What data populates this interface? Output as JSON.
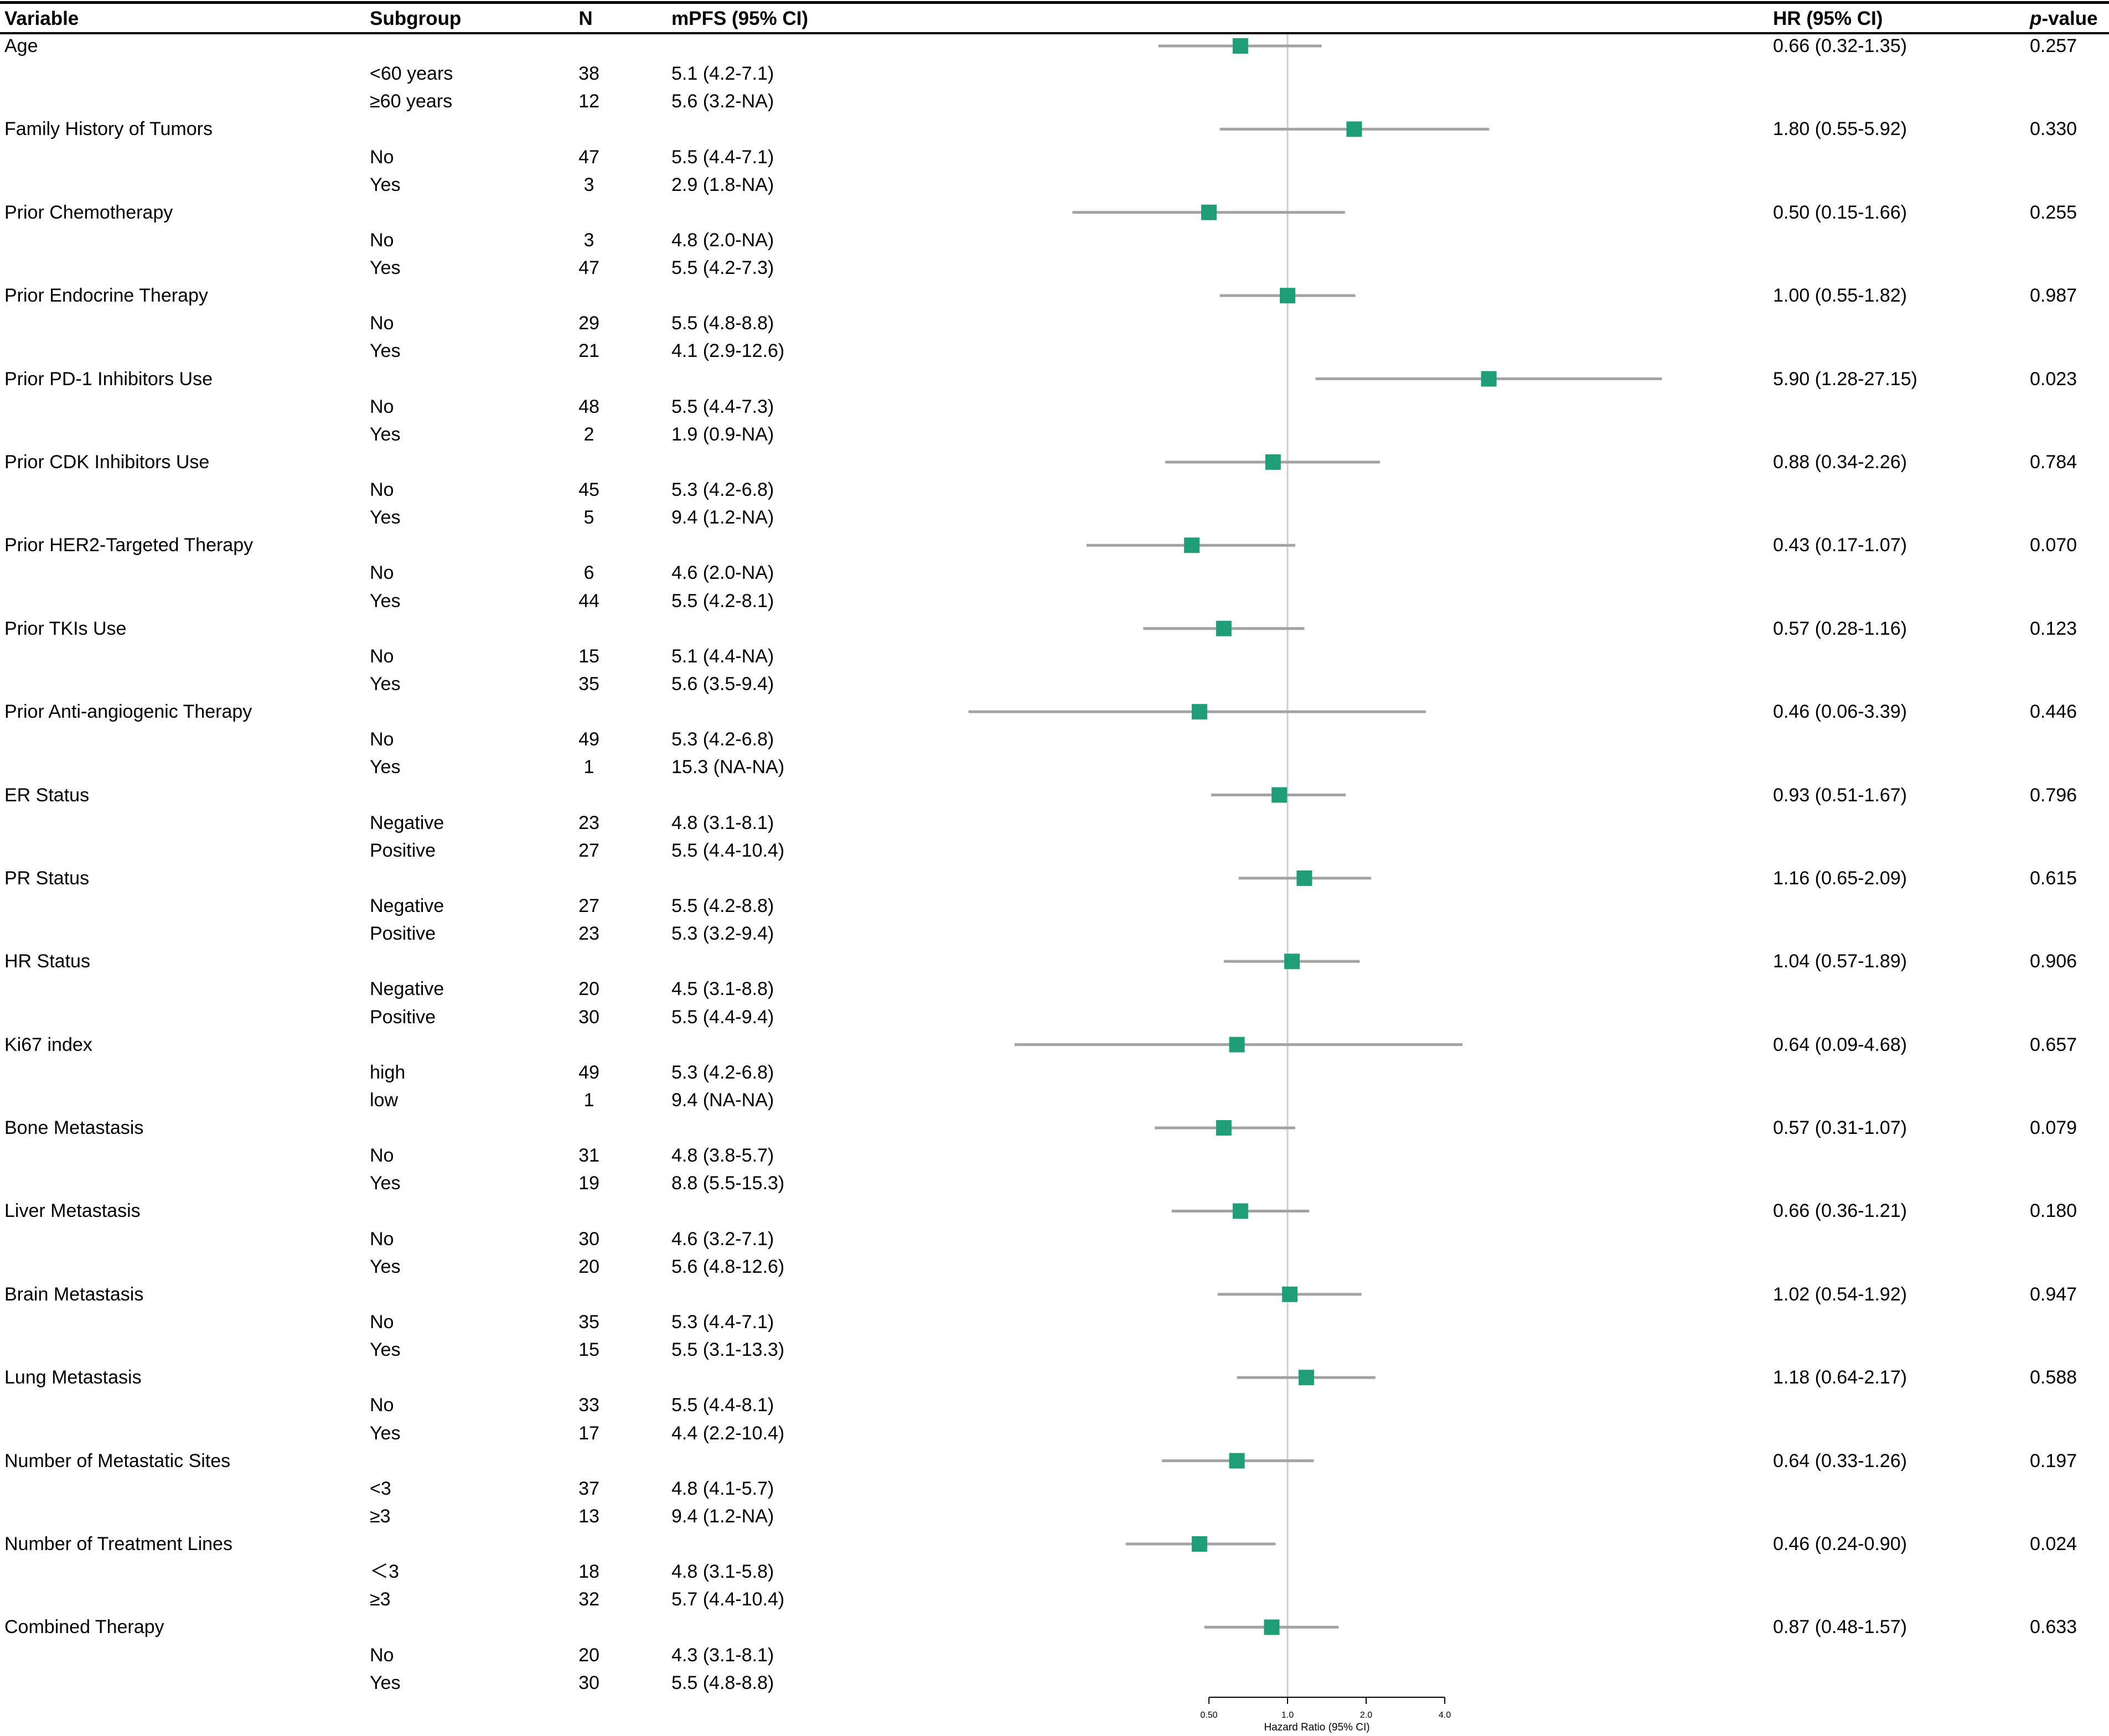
{
  "header": {
    "variable": "Variable",
    "subgroup": "Subgroup",
    "n": "N",
    "mpfs": "mPFS (95% CI)",
    "hr": "HR (95% CI)",
    "p_italic": "p",
    "p_rest": "-value"
  },
  "colors": {
    "marker": "#1f9e78",
    "ci_line": "#a3a3a3",
    "reference_line": "#cfcfcf",
    "axis": "#000000"
  },
  "chart_data": {
    "type": "forest",
    "title": "",
    "xlabel": "Hazard Ratio (95% CI)",
    "ylabel": "",
    "x_scale": "log",
    "reference_value": 1.0,
    "axis_ticks": [
      0.5,
      1.0,
      2.0,
      4.0
    ],
    "tick_labels": [
      "0.50",
      "1.0",
      "2.0",
      "4.0"
    ],
    "rows": [
      {
        "variable": "Age",
        "hr": 0.66,
        "ci": [
          0.32,
          1.35
        ],
        "hr_ci": "0.66 (0.32-1.35)",
        "p": "0.257",
        "subgroups": [
          {
            "name": "<60 years",
            "n": 38,
            "mpfs": "5.1 (4.2-7.1)"
          },
          {
            "name": "≥60 years",
            "n": 12,
            "mpfs": "5.6 (3.2-NA)"
          }
        ]
      },
      {
        "variable": "Family History of Tumors",
        "hr": 1.8,
        "ci": [
          0.55,
          5.92
        ],
        "hr_ci": "1.80 (0.55-5.92)",
        "p": "0.330",
        "subgroups": [
          {
            "name": "No",
            "n": 47,
            "mpfs": "5.5 (4.4-7.1)"
          },
          {
            "name": "Yes",
            "n": 3,
            "mpfs": "2.9 (1.8-NA)"
          }
        ]
      },
      {
        "variable": "Prior Chemotherapy",
        "hr": 0.5,
        "ci": [
          0.15,
          1.66
        ],
        "hr_ci": "0.50 (0.15-1.66)",
        "p": "0.255",
        "subgroups": [
          {
            "name": "No",
            "n": 3,
            "mpfs": "4.8 (2.0-NA)"
          },
          {
            "name": "Yes",
            "n": 47,
            "mpfs": "5.5 (4.2-7.3)"
          }
        ]
      },
      {
        "variable": "Prior Endocrine Therapy",
        "hr": 1.0,
        "ci": [
          0.55,
          1.82
        ],
        "hr_ci": "1.00 (0.55-1.82)",
        "p": "0.987",
        "subgroups": [
          {
            "name": "No",
            "n": 29,
            "mpfs": "5.5 (4.8-8.8)"
          },
          {
            "name": "Yes",
            "n": 21,
            "mpfs": "4.1 (2.9-12.6)"
          }
        ]
      },
      {
        "variable": "Prior PD-1 Inhibitors Use",
        "hr": 5.9,
        "ci": [
          1.28,
          27.15
        ],
        "hr_ci": "5.90 (1.28-27.15)",
        "p": "0.023",
        "subgroups": [
          {
            "name": "No",
            "n": 48,
            "mpfs": "5.5 (4.4-7.3)"
          },
          {
            "name": "Yes",
            "n": 2,
            "mpfs": "1.9 (0.9-NA)"
          }
        ]
      },
      {
        "variable": "Prior CDK Inhibitors Use",
        "hr": 0.88,
        "ci": [
          0.34,
          2.26
        ],
        "hr_ci": "0.88 (0.34-2.26)",
        "p": "0.784",
        "subgroups": [
          {
            "name": "No",
            "n": 45,
            "mpfs": "5.3 (4.2-6.8)"
          },
          {
            "name": "Yes",
            "n": 5,
            "mpfs": "9.4 (1.2-NA)"
          }
        ]
      },
      {
        "variable": "Prior HER2-Targeted Therapy",
        "hr": 0.43,
        "ci": [
          0.17,
          1.07
        ],
        "hr_ci": "0.43 (0.17-1.07)",
        "p": "0.070",
        "subgroups": [
          {
            "name": "No",
            "n": 6,
            "mpfs": "4.6 (2.0-NA)"
          },
          {
            "name": "Yes",
            "n": 44,
            "mpfs": "5.5 (4.2-8.1)"
          }
        ]
      },
      {
        "variable": "Prior TKIs Use",
        "hr": 0.57,
        "ci": [
          0.28,
          1.16
        ],
        "hr_ci": "0.57 (0.28-1.16)",
        "p": "0.123",
        "subgroups": [
          {
            "name": "No",
            "n": 15,
            "mpfs": "5.1 (4.4-NA)"
          },
          {
            "name": "Yes",
            "n": 35,
            "mpfs": "5.6 (3.5-9.4)"
          }
        ]
      },
      {
        "variable": "Prior Anti-angiogenic Therapy",
        "hr": 0.46,
        "ci": [
          0.06,
          3.39
        ],
        "hr_ci": "0.46 (0.06-3.39)",
        "p": "0.446",
        "subgroups": [
          {
            "name": "No",
            "n": 49,
            "mpfs": "5.3 (4.2-6.8)"
          },
          {
            "name": "Yes",
            "n": 1,
            "mpfs": "15.3 (NA-NA)"
          }
        ]
      },
      {
        "variable": "ER Status",
        "hr": 0.93,
        "ci": [
          0.51,
          1.67
        ],
        "hr_ci": "0.93 (0.51-1.67)",
        "p": "0.796",
        "subgroups": [
          {
            "name": "Negative",
            "n": 23,
            "mpfs": "4.8 (3.1-8.1)"
          },
          {
            "name": "Positive",
            "n": 27,
            "mpfs": "5.5 (4.4-10.4)"
          }
        ]
      },
      {
        "variable": "PR Status",
        "hr": 1.16,
        "ci": [
          0.65,
          2.09
        ],
        "hr_ci": "1.16 (0.65-2.09)",
        "p": "0.615",
        "subgroups": [
          {
            "name": "Negative",
            "n": 27,
            "mpfs": "5.5 (4.2-8.8)"
          },
          {
            "name": "Positive",
            "n": 23,
            "mpfs": "5.3 (3.2-9.4)"
          }
        ]
      },
      {
        "variable": "HR Status",
        "hr": 1.04,
        "ci": [
          0.57,
          1.89
        ],
        "hr_ci": "1.04 (0.57-1.89)",
        "p": "0.906",
        "subgroups": [
          {
            "name": "Negative",
            "n": 20,
            "mpfs": "4.5 (3.1-8.8)"
          },
          {
            "name": "Positive",
            "n": 30,
            "mpfs": "5.5 (4.4-9.4)"
          }
        ]
      },
      {
        "variable": "Ki67 index",
        "hr": 0.64,
        "ci": [
          0.09,
          4.68
        ],
        "hr_ci": "0.64 (0.09-4.68)",
        "p": "0.657",
        "subgroups": [
          {
            "name": "high",
            "n": 49,
            "mpfs": "5.3 (4.2-6.8)"
          },
          {
            "name": "low",
            "n": 1,
            "mpfs": "9.4 (NA-NA)"
          }
        ]
      },
      {
        "variable": "Bone Metastasis",
        "hr": 0.57,
        "ci": [
          0.31,
          1.07
        ],
        "hr_ci": "0.57 (0.31-1.07)",
        "p": "0.079",
        "subgroups": [
          {
            "name": "No",
            "n": 31,
            "mpfs": "4.8 (3.8-5.7)"
          },
          {
            "name": "Yes",
            "n": 19,
            "mpfs": "8.8 (5.5-15.3)"
          }
        ]
      },
      {
        "variable": "Liver Metastasis",
        "hr": 0.66,
        "ci": [
          0.36,
          1.21
        ],
        "hr_ci": "0.66 (0.36-1.21)",
        "p": "0.180",
        "subgroups": [
          {
            "name": "No",
            "n": 30,
            "mpfs": "4.6 (3.2-7.1)"
          },
          {
            "name": "Yes",
            "n": 20,
            "mpfs": "5.6 (4.8-12.6)"
          }
        ]
      },
      {
        "variable": "Brain Metastasis",
        "hr": 1.02,
        "ci": [
          0.54,
          1.92
        ],
        "hr_ci": "1.02 (0.54-1.92)",
        "p": "0.947",
        "subgroups": [
          {
            "name": "No",
            "n": 35,
            "mpfs": "5.3 (4.4-7.1)"
          },
          {
            "name": "Yes",
            "n": 15,
            "mpfs": "5.5 (3.1-13.3)"
          }
        ]
      },
      {
        "variable": "Lung Metastasis",
        "hr": 1.18,
        "ci": [
          0.64,
          2.17
        ],
        "hr_ci": "1.18 (0.64-2.17)",
        "p": "0.588",
        "subgroups": [
          {
            "name": "No",
            "n": 33,
            "mpfs": "5.5 (4.4-8.1)"
          },
          {
            "name": "Yes",
            "n": 17,
            "mpfs": "4.4 (2.2-10.4)"
          }
        ]
      },
      {
        "variable": "Number of Metastatic Sites",
        "hr": 0.64,
        "ci": [
          0.33,
          1.26
        ],
        "hr_ci": "0.64 (0.33-1.26)",
        "p": "0.197",
        "subgroups": [
          {
            "name": "<3",
            "n": 37,
            "mpfs": "4.8 (4.1-5.7)"
          },
          {
            "name": "≥3",
            "n": 13,
            "mpfs": "9.4 (1.2-NA)"
          }
        ]
      },
      {
        "variable": "Number of Treatment Lines",
        "hr": 0.46,
        "ci": [
          0.24,
          0.9
        ],
        "hr_ci": "0.46 (0.24-0.90)",
        "p": "0.024",
        "subgroups": [
          {
            "name": "＜3",
            "n": 18,
            "mpfs": "4.8 (3.1-5.8)"
          },
          {
            "name": "≥3",
            "n": 32,
            "mpfs": "5.7 (4.4-10.4)"
          }
        ]
      },
      {
        "variable": "Combined Therapy",
        "hr": 0.87,
        "ci": [
          0.48,
          1.57
        ],
        "hr_ci": "0.87 (0.48-1.57)",
        "p": "0.633",
        "subgroups": [
          {
            "name": "No",
            "n": 20,
            "mpfs": "4.3 (3.1-8.1)"
          },
          {
            "name": "Yes",
            "n": 30,
            "mpfs": "5.5 (4.8-8.8)"
          }
        ]
      }
    ]
  }
}
